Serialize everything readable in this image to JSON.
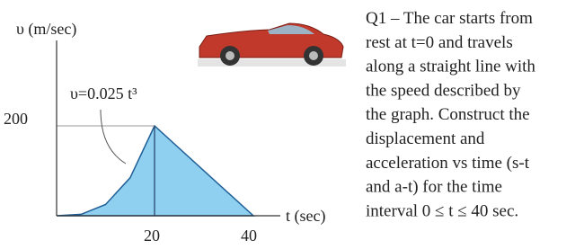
{
  "graph": {
    "y_label": "υ (m/sec)",
    "x_label": "t (sec)",
    "equation": "υ=0.025 t³",
    "y_ticks": [
      "200"
    ],
    "x_ticks": [
      "20",
      "40"
    ]
  },
  "question": {
    "lines": [
      "Q1 – The car starts from",
      "rest at t=0 and travels",
      "along a straight line with",
      "the speed described by",
      "the graph. Construct the",
      "displacement and",
      "acceleration vs time (s-t",
      "and a-t) for the time",
      "interval 0 ≤ t ≤ 40 sec."
    ]
  }
}
